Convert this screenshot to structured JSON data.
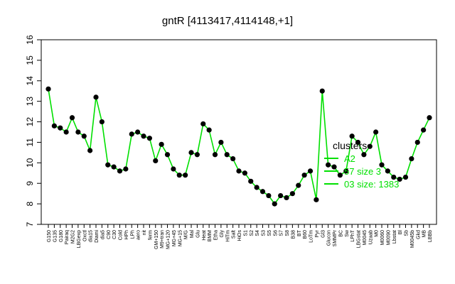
{
  "chart_data": {
    "type": "line",
    "title": "gntR [4113417,4114148,+1]",
    "xlabel": "",
    "ylabel": "",
    "ylim": [
      7,
      16
    ],
    "yticks": [
      7,
      8,
      9,
      10,
      11,
      12,
      13,
      14,
      15,
      16
    ],
    "grid": false,
    "colors": {
      "line": "#00e000",
      "points": "#000000",
      "legend": "#00e000",
      "axis": "#000000"
    },
    "x_labels": [
      "G150",
      "G135",
      "G180",
      "Pairaq",
      "M2G2",
      "LBGexp",
      "Oxctl",
      "dia15",
      "Diami",
      "dia5",
      "C90",
      "C30",
      "Cold",
      "HPh",
      "LPh",
      "aero",
      "nit",
      "ferm",
      "GM+150",
      "M9+tran",
      "MG+120",
      "MG+45",
      "MG+15",
      "M/G",
      "Mal",
      "Glu",
      "Heat",
      "BMM",
      "Etha",
      "Gly",
      "HiTm",
      "Salt",
      "HiOs",
      "S1",
      "S2",
      "S4",
      "S3",
      "S5",
      "S6",
      "S7",
      "S8",
      "B38",
      "BT",
      "B60",
      "LoTm",
      "Pyr",
      "Gl3",
      "Glucon",
      "SMMPr",
      "BC",
      "Sw",
      "LPhT",
      "LBGstat",
      "M0045",
      "Uzaab",
      "M0",
      "M0060",
      "M0090",
      "Lbstat",
      "Bl",
      "Sb",
      "M0045b",
      "Gkd",
      "MB",
      "LBBb"
    ],
    "series": [
      {
        "values": [
          13.6,
          11.8,
          11.7,
          11.5,
          12.2,
          11.5,
          11.3,
          10.6,
          13.2,
          12,
          9.9,
          9.8,
          9.6,
          9.7,
          11.4,
          11.5,
          11.3,
          11.2,
          10.1,
          10.9,
          10.4,
          9.7,
          9.4,
          9.4,
          10.5,
          10.4,
          11.9,
          11.6,
          10.4,
          11,
          10.4,
          10.2,
          9.6,
          9.5,
          9.1,
          8.8,
          8.6,
          8.4,
          8,
          8.4,
          8.3,
          8.5,
          8.9,
          9.4,
          9.6,
          8.2,
          13.5,
          9.9,
          9.8,
          9.4,
          9.6,
          11.3,
          11,
          10.4,
          10.8,
          11.5,
          9.9,
          9.6,
          9.3,
          9.2,
          9.3,
          10.2,
          11,
          11.6,
          12.2
        ]
      }
    ],
    "legend": {
      "title": "clusters",
      "placement": "right",
      "entries": [
        "A2",
        "57 size 3",
        "03 size: 1383"
      ]
    }
  }
}
